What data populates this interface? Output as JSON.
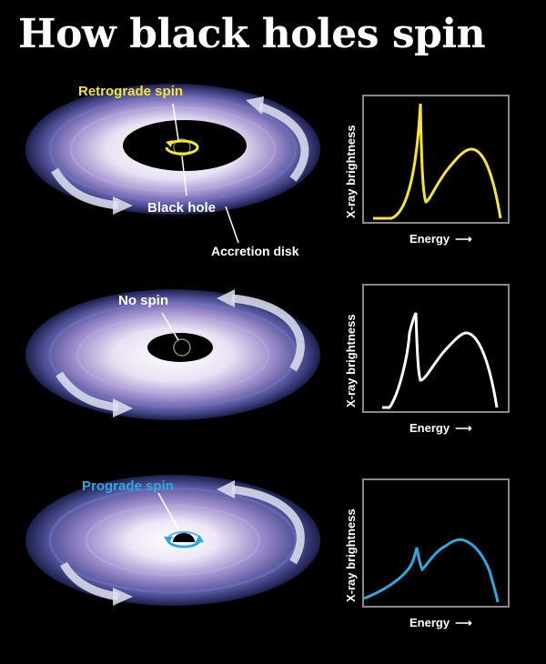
{
  "title": "How black holes spin",
  "colors": {
    "retrograde": "#f5e633",
    "none": "#ffffff",
    "prograde": "#2fa8e0",
    "background": "#000000",
    "frame": "#8a8a8a"
  },
  "panels": [
    {
      "id": "retrograde",
      "spin_label": "Retrograde spin",
      "black_hole_label": "Black hole",
      "disk_label": "Accretion disk",
      "y_axis": "X-ray brightness",
      "x_axis": "Energy"
    },
    {
      "id": "none",
      "spin_label": "No spin",
      "y_axis": "X-ray brightness",
      "x_axis": "Energy"
    },
    {
      "id": "prograde",
      "spin_label": "Prograde spin",
      "y_axis": "X-ray brightness",
      "x_axis": "Energy"
    }
  ]
}
